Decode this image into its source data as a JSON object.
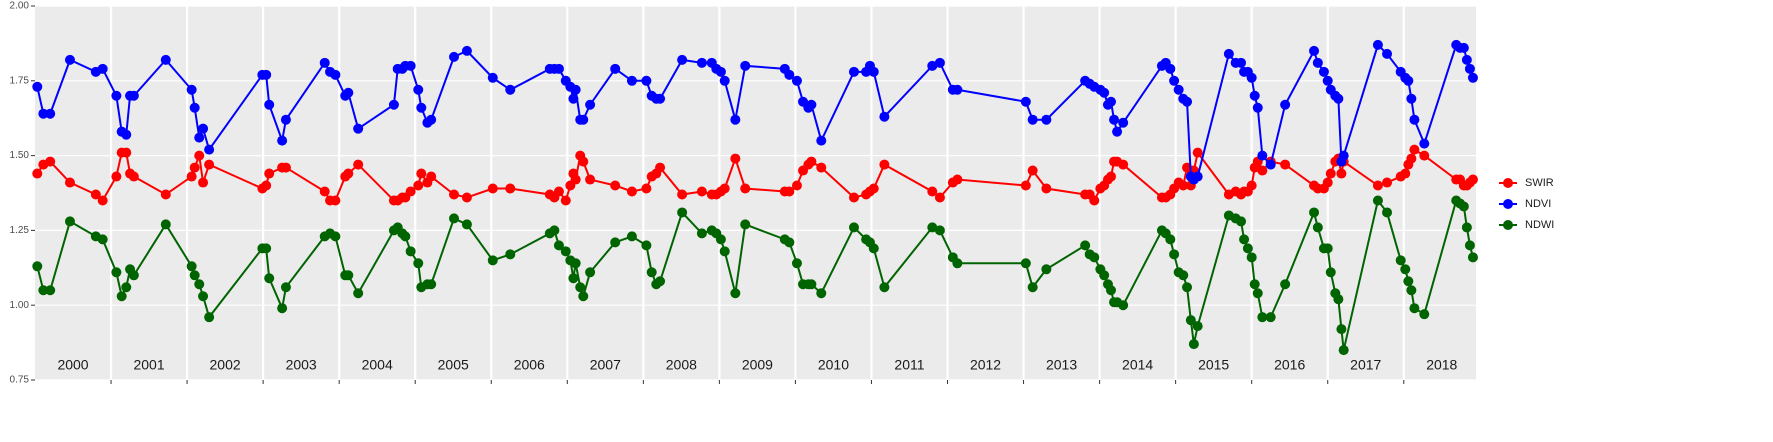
{
  "chart_data": {
    "type": "line",
    "x": [
      2000.03,
      2000.11,
      2000.2,
      2000.46,
      2000.8,
      2000.89,
      2001.07,
      2001.14,
      2001.2,
      2001.25,
      2001.3,
      2001.72,
      2002.06,
      2002.1,
      2002.16,
      2002.21,
      2002.29,
      2002.99,
      2003.04,
      2003.08,
      2003.25,
      2003.3,
      2003.81,
      2003.88,
      2003.95,
      2004.08,
      2004.12,
      2004.25,
      2004.72,
      2004.77,
      2004.83,
      2004.87,
      2004.94,
      2005.04,
      2005.08,
      2005.16,
      2005.21,
      2005.51,
      2005.68,
      2006.02,
      2006.25,
      2006.77,
      2006.83,
      2006.89,
      2006.98,
      2007.04,
      2007.08,
      2007.11,
      2007.17,
      2007.21,
      2007.3,
      2007.63,
      2007.85,
      2008.04,
      2008.11,
      2008.17,
      2008.22,
      2008.51,
      2008.77,
      2008.9,
      2008.96,
      2009.02,
      2009.07,
      2009.21,
      2009.34,
      2009.86,
      2009.92,
      2010.02,
      2010.1,
      2010.17,
      2010.21,
      2010.34,
      2010.77,
      2010.93,
      2010.98,
      2011.03,
      2011.17,
      2011.8,
      2011.9,
      2012.07,
      2012.13,
      2013.03,
      2013.12,
      2013.3,
      2013.81,
      2013.87,
      2013.93,
      2014.01,
      2014.06,
      2014.11,
      2014.15,
      2014.19,
      2014.23,
      2014.31,
      2014.82,
      2014.87,
      2014.93,
      2014.98,
      2015.04,
      2015.1,
      2015.15,
      2015.2,
      2015.24,
      2015.29,
      2015.7,
      2015.79,
      2015.86,
      2015.9,
      2015.95,
      2016.0,
      2016.04,
      2016.08,
      2016.14,
      2016.25,
      2016.44,
      2016.82,
      2016.87,
      2016.95,
      2017.0,
      2017.04,
      2017.1,
      2017.14,
      2017.18,
      2017.21,
      2017.66,
      2017.78,
      2017.96,
      2018.02,
      2018.06,
      2018.1,
      2018.14,
      2018.27,
      2018.69,
      2018.74,
      2018.79,
      2018.83,
      2018.87,
      2018.91
    ],
    "series": [
      {
        "name": "SWIR",
        "color": "#ff0000",
        "values": [
          1.44,
          1.47,
          1.48,
          1.41,
          1.37,
          1.35,
          1.43,
          1.51,
          1.51,
          1.44,
          1.43,
          1.37,
          1.43,
          1.46,
          1.5,
          1.41,
          1.47,
          1.39,
          1.4,
          1.44,
          1.46,
          1.46,
          1.38,
          1.35,
          1.35,
          1.43,
          1.44,
          1.47,
          1.35,
          1.35,
          1.36,
          1.36,
          1.38,
          1.4,
          1.44,
          1.41,
          1.43,
          1.37,
          1.36,
          1.39,
          1.39,
          1.37,
          1.36,
          1.38,
          1.35,
          1.4,
          1.44,
          1.42,
          1.5,
          1.48,
          1.42,
          1.4,
          1.38,
          1.39,
          1.43,
          1.44,
          1.46,
          1.37,
          1.38,
          1.37,
          1.37,
          1.38,
          1.39,
          1.49,
          1.39,
          1.38,
          1.38,
          1.4,
          1.45,
          1.47,
          1.48,
          1.46,
          1.36,
          1.37,
          1.38,
          1.39,
          1.47,
          1.38,
          1.36,
          1.41,
          1.42,
          1.4,
          1.45,
          1.39,
          1.37,
          1.37,
          1.35,
          1.39,
          1.4,
          1.42,
          1.43,
          1.48,
          1.48,
          1.47,
          1.36,
          1.36,
          1.37,
          1.39,
          1.41,
          1.4,
          1.46,
          1.4,
          1.45,
          1.51,
          1.37,
          1.38,
          1.37,
          1.38,
          1.38,
          1.4,
          1.46,
          1.48,
          1.45,
          1.48,
          1.47,
          1.4,
          1.39,
          1.39,
          1.41,
          1.44,
          1.48,
          1.49,
          1.44,
          1.48,
          1.4,
          1.41,
          1.43,
          1.44,
          1.47,
          1.49,
          1.52,
          1.5,
          1.42,
          1.42,
          1.4,
          1.4,
          1.41,
          1.42
        ]
      },
      {
        "name": "NDVI",
        "color": "#0000ff",
        "values": [
          1.73,
          1.64,
          1.64,
          1.82,
          1.78,
          1.79,
          1.7,
          1.58,
          1.57,
          1.7,
          1.7,
          1.82,
          1.72,
          1.66,
          1.56,
          1.59,
          1.52,
          1.77,
          1.77,
          1.67,
          1.55,
          1.62,
          1.81,
          1.78,
          1.77,
          1.7,
          1.71,
          1.59,
          1.67,
          1.79,
          1.79,
          1.8,
          1.8,
          1.72,
          1.66,
          1.61,
          1.62,
          1.83,
          1.85,
          1.76,
          1.72,
          1.79,
          1.79,
          1.79,
          1.75,
          1.73,
          1.69,
          1.72,
          1.62,
          1.62,
          1.67,
          1.79,
          1.75,
          1.75,
          1.7,
          1.69,
          1.69,
          1.82,
          1.81,
          1.81,
          1.79,
          1.78,
          1.75,
          1.62,
          1.8,
          1.79,
          1.77,
          1.75,
          1.68,
          1.66,
          1.67,
          1.55,
          1.78,
          1.78,
          1.8,
          1.78,
          1.63,
          1.8,
          1.81,
          1.72,
          1.72,
          1.68,
          1.62,
          1.62,
          1.75,
          1.74,
          1.73,
          1.72,
          1.71,
          1.67,
          1.68,
          1.62,
          1.58,
          1.61,
          1.8,
          1.81,
          1.79,
          1.75,
          1.72,
          1.69,
          1.68,
          1.43,
          1.42,
          1.43,
          1.84,
          1.81,
          1.81,
          1.78,
          1.78,
          1.76,
          1.7,
          1.66,
          1.5,
          1.47,
          1.67,
          1.85,
          1.81,
          1.78,
          1.75,
          1.72,
          1.7,
          1.69,
          1.48,
          1.5,
          1.87,
          1.84,
          1.78,
          1.76,
          1.75,
          1.69,
          1.62,
          1.54,
          1.87,
          1.86,
          1.86,
          1.82,
          1.79,
          1.76
        ]
      },
      {
        "name": "NDWI",
        "color": "#006400",
        "values": [
          1.13,
          1.05,
          1.05,
          1.28,
          1.23,
          1.22,
          1.11,
          1.03,
          1.06,
          1.12,
          1.1,
          1.27,
          1.13,
          1.1,
          1.07,
          1.03,
          0.96,
          1.19,
          1.19,
          1.09,
          0.99,
          1.06,
          1.23,
          1.24,
          1.23,
          1.1,
          1.1,
          1.04,
          1.25,
          1.26,
          1.24,
          1.23,
          1.18,
          1.14,
          1.06,
          1.07,
          1.07,
          1.29,
          1.27,
          1.15,
          1.17,
          1.24,
          1.25,
          1.2,
          1.18,
          1.15,
          1.09,
          1.14,
          1.06,
          1.03,
          1.11,
          1.21,
          1.23,
          1.2,
          1.11,
          1.07,
          1.08,
          1.31,
          1.24,
          1.25,
          1.24,
          1.22,
          1.18,
          1.04,
          1.27,
          1.22,
          1.21,
          1.14,
          1.07,
          1.07,
          1.07,
          1.04,
          1.26,
          1.22,
          1.21,
          1.19,
          1.06,
          1.26,
          1.25,
          1.16,
          1.14,
          1.14,
          1.06,
          1.12,
          1.2,
          1.17,
          1.16,
          1.12,
          1.1,
          1.07,
          1.05,
          1.01,
          1.01,
          1.0,
          1.25,
          1.24,
          1.22,
          1.17,
          1.11,
          1.1,
          1.06,
          0.95,
          0.87,
          0.93,
          1.3,
          1.29,
          1.28,
          1.22,
          1.19,
          1.16,
          1.07,
          1.04,
          0.96,
          0.96,
          1.07,
          1.31,
          1.26,
          1.19,
          1.19,
          1.11,
          1.04,
          1.02,
          0.92,
          0.85,
          1.35,
          1.31,
          1.15,
          1.12,
          1.08,
          1.05,
          0.99,
          0.97,
          1.35,
          1.34,
          1.33,
          1.26,
          1.2,
          1.16
        ]
      }
    ],
    "xlim": [
      2000,
      2018.95
    ],
    "xticks": [
      {
        "value": 2000.5,
        "label": "2000"
      },
      {
        "value": 2001.5,
        "label": "2001"
      },
      {
        "value": 2002.5,
        "label": "2002"
      },
      {
        "value": 2003.5,
        "label": "2003"
      },
      {
        "value": 2004.5,
        "label": "2004"
      },
      {
        "value": 2005.5,
        "label": "2005"
      },
      {
        "value": 2006.5,
        "label": "2006"
      },
      {
        "value": 2007.5,
        "label": "2007"
      },
      {
        "value": 2008.5,
        "label": "2008"
      },
      {
        "value": 2009.5,
        "label": "2009"
      },
      {
        "value": 2010.5,
        "label": "2010"
      },
      {
        "value": 2011.5,
        "label": "2011"
      },
      {
        "value": 2012.5,
        "label": "2012"
      },
      {
        "value": 2013.5,
        "label": "2013"
      },
      {
        "value": 2014.5,
        "label": "2014"
      },
      {
        "value": 2015.5,
        "label": "2015"
      },
      {
        "value": 2016.5,
        "label": "2016"
      },
      {
        "value": 2017.5,
        "label": "2017"
      },
      {
        "value": 2018.5,
        "label": "2018"
      }
    ],
    "year_boundaries": [
      2001,
      2002,
      2003,
      2004,
      2005,
      2006,
      2007,
      2008,
      2009,
      2010,
      2011,
      2012,
      2013,
      2014,
      2015,
      2016,
      2017,
      2018
    ],
    "ylim": [
      0.75,
      2.0
    ],
    "yticks": [
      {
        "value": 0.75,
        "label": "0.75"
      },
      {
        "value": 1.0,
        "label": "1.00"
      },
      {
        "value": 1.25,
        "label": "1.25"
      },
      {
        "value": 1.5,
        "label": "1.50"
      },
      {
        "value": 1.75,
        "label": "1.75"
      },
      {
        "value": 2.0,
        "label": "2.00"
      }
    ],
    "grid": true,
    "legend": "right"
  }
}
